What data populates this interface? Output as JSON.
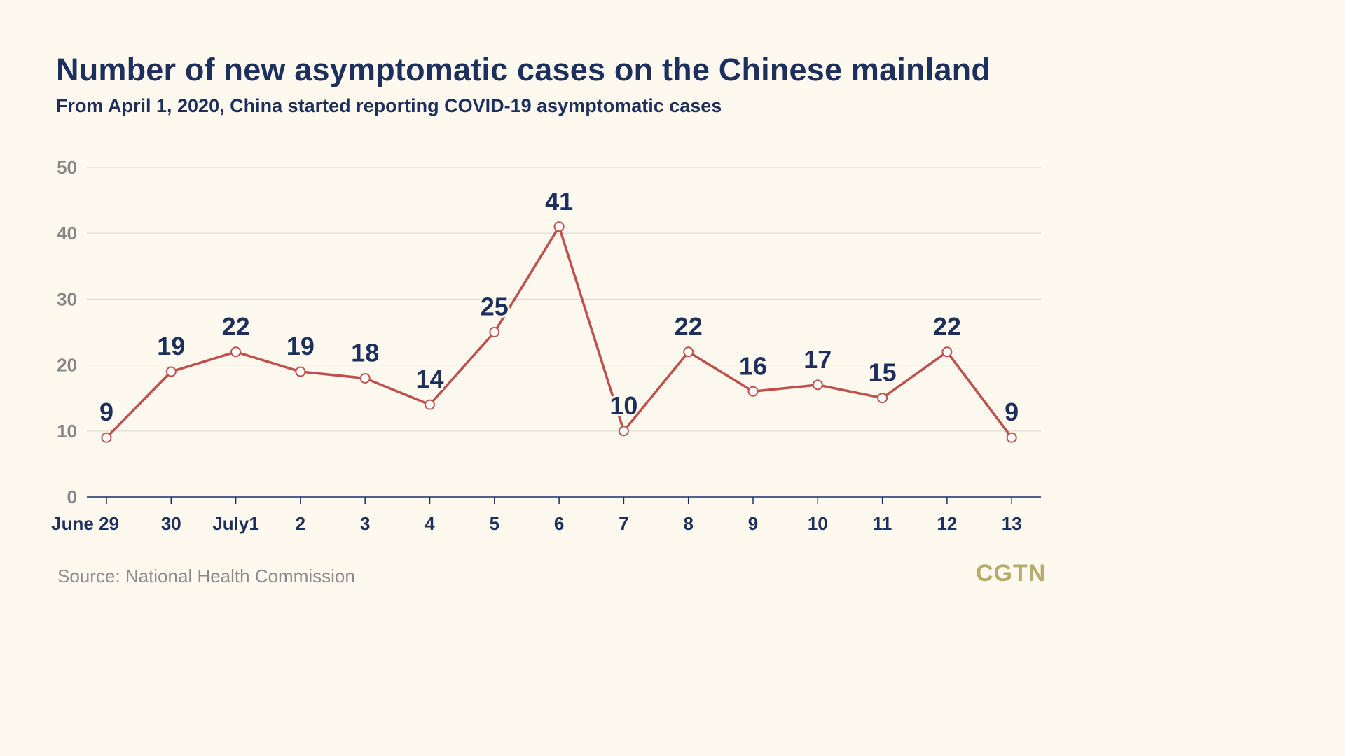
{
  "title": "Number of new asymptomatic cases on the Chinese mainland",
  "subtitle": "From April 1, 2020, China started reporting COVID-19 asymptomatic cases",
  "source": "Source: National Health Commission",
  "logo": "CGTN",
  "colors": {
    "background": "#fdf9ee",
    "title": "#1d2f5c",
    "line": "#c0504d",
    "grid": "#dedbd2",
    "axis": "#1d2f5c",
    "ytick": "#868686",
    "logo": "#b6ac6a"
  },
  "chart_data": {
    "type": "line",
    "title": "Number of new asymptomatic cases on the Chinese mainland",
    "subtitle": "From April 1, 2020, China started reporting COVID-19 asymptomatic cases",
    "categories": [
      "June 29",
      "30",
      "July1",
      "2",
      "3",
      "4",
      "5",
      "6",
      "7",
      "8",
      "9",
      "10",
      "11",
      "12",
      "13"
    ],
    "values": [
      9,
      19,
      22,
      19,
      18,
      14,
      25,
      41,
      10,
      22,
      16,
      17,
      15,
      22,
      9
    ],
    "ylim": [
      0,
      50
    ],
    "yticks": [
      0,
      10,
      20,
      30,
      40,
      50
    ],
    "grid": true,
    "data_labels": true,
    "legend": "none"
  }
}
